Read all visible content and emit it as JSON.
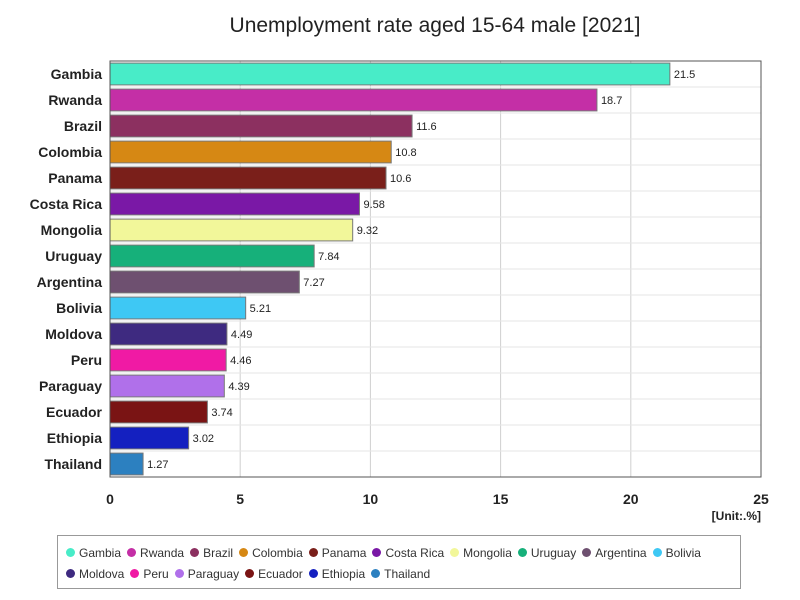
{
  "chart_data": {
    "type": "bar",
    "orientation": "horizontal",
    "title": "Unemployment rate aged 15-64 male [2021]",
    "unit_label": "[Unit:.%]",
    "xlim": [
      0,
      25
    ],
    "x_ticks": [
      "0",
      "5",
      "10",
      "15",
      "20",
      "25"
    ],
    "grid": true,
    "legend_position": "bottom",
    "categories": [
      "Gambia",
      "Rwanda",
      "Brazil",
      "Colombia",
      "Panama",
      "Costa Rica",
      "Mongolia",
      "Uruguay",
      "Argentina",
      "Bolivia",
      "Moldova",
      "Peru",
      "Paraguay",
      "Ecuador",
      "Ethiopia",
      "Thailand"
    ],
    "values": [
      21.5,
      18.7,
      11.6,
      10.8,
      10.6,
      9.58,
      9.32,
      7.84,
      7.27,
      5.21,
      4.49,
      4.46,
      4.39,
      3.74,
      3.02,
      1.27
    ],
    "value_labels": [
      "21.5",
      "18.7",
      "11.6",
      "10.8",
      "10.6",
      "9.58",
      "9.32",
      "7.84",
      "7.27",
      "5.21",
      "4.49",
      "4.46",
      "4.39",
      "3.74",
      "3.02",
      "1.27"
    ],
    "colors": [
      "#48ecc8",
      "#c42fa6",
      "#8c3060",
      "#d68814",
      "#7a1f1a",
      "#7a18a6",
      "#f2f79a",
      "#16b07a",
      "#6e5070",
      "#3ec8f4",
      "#3e2a80",
      "#f01aa4",
      "#b070ea",
      "#7a1414",
      "#1420c0",
      "#2c80c0"
    ]
  }
}
